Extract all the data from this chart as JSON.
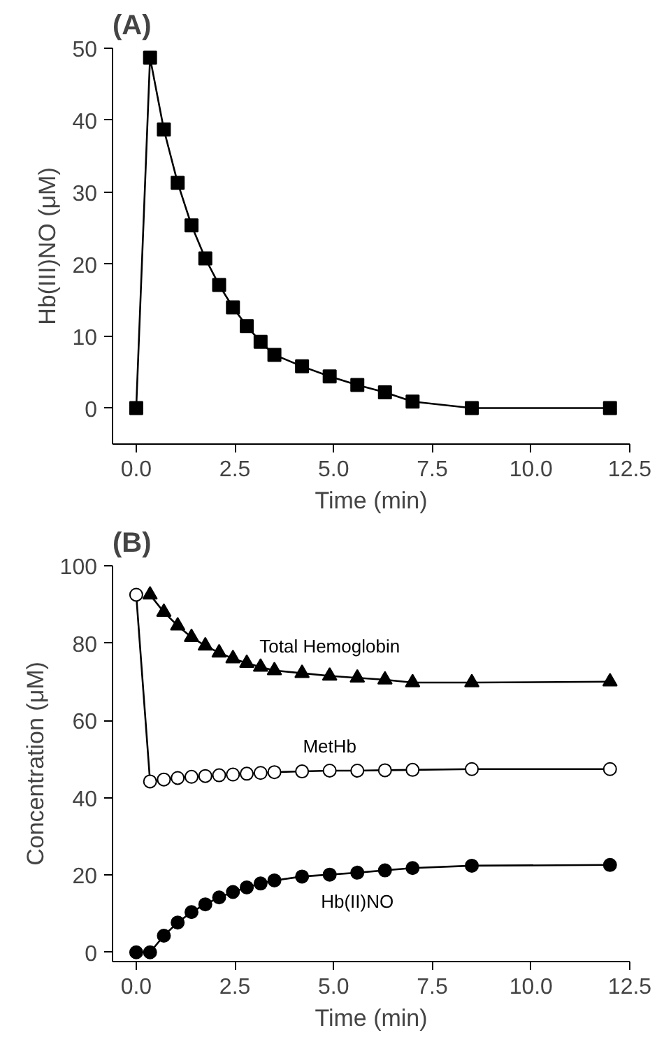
{
  "chart_data": [
    {
      "type": "line",
      "title": "(A)",
      "xlabel": "Time (min)",
      "ylabel": "Hb(III)NO (μM)",
      "x": [
        0,
        0.35,
        0.7,
        1.05,
        1.4,
        1.75,
        2.1,
        2.45,
        2.8,
        3.15,
        3.5,
        4.2,
        4.9,
        5.6,
        6.3,
        7.0,
        8.5,
        12.0
      ],
      "series": [
        {
          "color": "#000000",
          "marker": "square",
          "values": [
            0,
            48.7,
            38.7,
            31.3,
            25.4,
            20.8,
            17.1,
            14,
            11.4,
            9.2,
            7.4,
            5.8,
            4.4,
            3.2,
            2.2,
            0.9,
            0,
            0
          ]
        }
      ],
      "xlim": [
        -0.6,
        12.5
      ],
      "ylim": [
        -5,
        50
      ],
      "xticks": [
        {
          "value": 0,
          "label": "0.0"
        },
        {
          "value": 2.5,
          "label": "2.5"
        },
        {
          "value": 5,
          "label": "5.0"
        },
        {
          "value": 7.5,
          "label": "7.5"
        },
        {
          "value": 10,
          "label": "10.0"
        },
        {
          "value": 12.5,
          "label": "12.5"
        }
      ],
      "yticks": [
        0,
        10,
        20,
        30,
        40,
        50
      ],
      "grid": false,
      "line_style": "solid"
    },
    {
      "type": "line",
      "title": "(B)",
      "xlabel": "Time (min)",
      "ylabel": "Concentration (μM)",
      "x": [
        0,
        0.35,
        0.7,
        1.05,
        1.4,
        1.75,
        2.1,
        2.45,
        2.8,
        3.15,
        3.5,
        4.2,
        4.9,
        5.6,
        6.3,
        7.0,
        8.5,
        12.0
      ],
      "series": [
        {
          "name": "Total Hemoglobin",
          "color": "#000000",
          "marker": "triangle",
          "values": [
            null,
            92.5,
            88,
            84.5,
            81.5,
            79.3,
            77.5,
            76,
            74.8,
            73.8,
            72.9,
            72.2,
            71.5,
            71,
            70.5,
            69.8,
            69.8,
            70
          ]
        },
        {
          "name": "MetHb",
          "color": "#000000",
          "marker": "circle_open",
          "values": [
            92.5,
            44.2,
            44.7,
            45.1,
            45.4,
            45.6,
            45.8,
            46,
            46.2,
            46.4,
            46.6,
            46.8,
            47,
            47,
            47.1,
            47.2,
            47.4,
            47.4
          ]
        },
        {
          "name": "Hb(II)NO",
          "color": "#000000",
          "marker": "circle",
          "values": [
            0,
            0,
            4.3,
            7.7,
            10.4,
            12.4,
            14.2,
            15.6,
            16.8,
            17.8,
            18.6,
            19.6,
            20.1,
            20.6,
            21.2,
            21.8,
            22.4,
            22.6
          ]
        }
      ],
      "xlim": [
        -0.6,
        12.5
      ],
      "ylim": [
        -2.4,
        100
      ],
      "xticks": [
        {
          "value": 0,
          "label": "0.0"
        },
        {
          "value": 2.5,
          "label": "2.5"
        },
        {
          "value": 5,
          "label": "5.0"
        },
        {
          "value": 7.5,
          "label": "7.5"
        },
        {
          "value": 10,
          "label": "10.0"
        },
        {
          "value": 12.5,
          "label": "12.5"
        }
      ],
      "yticks": [
        0,
        20,
        40,
        60,
        80,
        100
      ],
      "grid": false,
      "line_style": "solid"
    }
  ]
}
